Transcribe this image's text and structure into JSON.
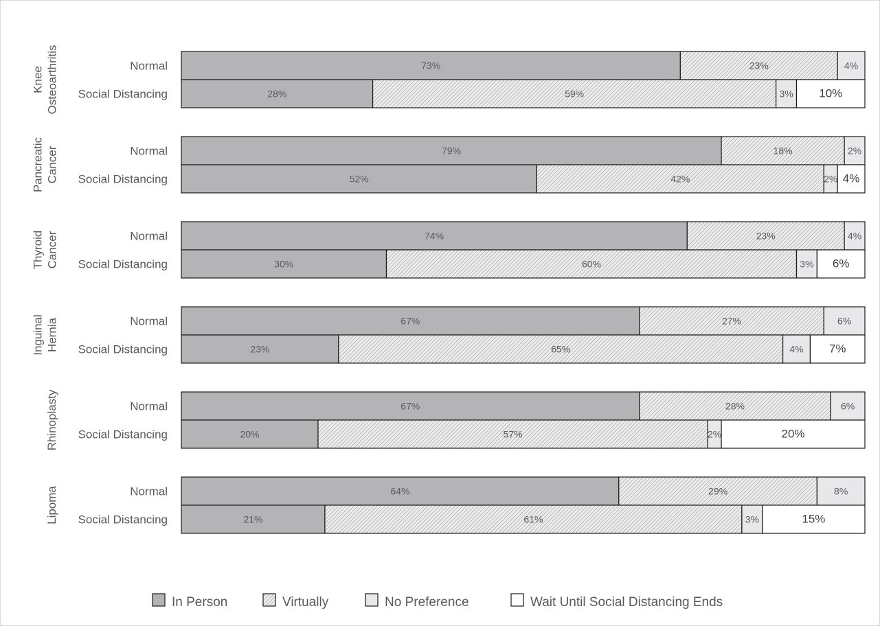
{
  "chart_data": {
    "type": "bar",
    "orientation": "horizontal",
    "stacked": "100%",
    "title": "",
    "xlabel": "",
    "ylabel": "",
    "xlim": [
      0,
      100
    ],
    "grid": false,
    "legend_position": "bottom",
    "series": [
      {
        "key": "in_person",
        "name": "In Person",
        "fill": "#b4b4b6",
        "pattern": "solid"
      },
      {
        "key": "virtually",
        "name": "Virtually",
        "fill": "#e6e6e6",
        "pattern": "diagonal-hatch"
      },
      {
        "key": "no_preference",
        "name": "No Preference",
        "fill": "#e8e8ea",
        "pattern": "solid"
      },
      {
        "key": "wait",
        "name": "Wait Until Social Distancing Ends",
        "fill": "#ffffff",
        "pattern": "solid"
      }
    ],
    "groups": [
      {
        "label_lines": [
          "Knee",
          "Osteoarthritis"
        ],
        "rows": [
          {
            "label": "Normal",
            "values": [
              73,
              23,
              4,
              0
            ],
            "labels": [
              "73%",
              "23%",
              "4%",
              ""
            ]
          },
          {
            "label": "Social Distancing",
            "values": [
              28,
              59,
              3,
              10
            ],
            "labels": [
              "28%",
              "59%",
              "3%",
              "10%"
            ]
          }
        ]
      },
      {
        "label_lines": [
          "Pancreatic",
          "Cancer"
        ],
        "rows": [
          {
            "label": "Normal",
            "values": [
              79,
              18,
              2,
              0
            ],
            "labels": [
              "79%",
              "18%",
              "2%",
              ""
            ]
          },
          {
            "label": "Social Distancing",
            "values": [
              52,
              42,
              2,
              4
            ],
            "labels": [
              "52%",
              "42%",
              "2%",
              "4%"
            ]
          }
        ]
      },
      {
        "label_lines": [
          "Thyroid",
          "Cancer"
        ],
        "rows": [
          {
            "label": "Normal",
            "values": [
              74,
              23,
              4,
              0
            ],
            "labels": [
              "74%",
              "23%",
              "4%",
              ""
            ]
          },
          {
            "label": "Social Distancing",
            "values": [
              30,
              60,
              3,
              6
            ],
            "labels": [
              "30%",
              "60%",
              "3%",
              "6%"
            ]
          }
        ]
      },
      {
        "label_lines": [
          "Inguinal",
          "Hernia"
        ],
        "rows": [
          {
            "label": "Normal",
            "values": [
              67,
              27,
              6,
              0
            ],
            "labels": [
              "67%",
              "27%",
              "6%",
              ""
            ]
          },
          {
            "label": "Social Distancing",
            "values": [
              23,
              65,
              4,
              7
            ],
            "labels": [
              "23%",
              "65%",
              "4%",
              "7%"
            ]
          }
        ]
      },
      {
        "label_lines": [
          "Rhinoplasty"
        ],
        "rows": [
          {
            "label": "Normal",
            "values": [
              67,
              28,
              6,
              0
            ],
            "labels": [
              "67%",
              "28%",
              "6%",
              ""
            ]
          },
          {
            "label": "Social Distancing",
            "values": [
              20,
              57,
              2,
              20
            ],
            "labels": [
              "20%",
              "57%",
              "2%",
              "20%"
            ]
          }
        ]
      },
      {
        "label_lines": [
          "Lipoma"
        ],
        "rows": [
          {
            "label": "Normal",
            "values": [
              64,
              29,
              8,
              0
            ],
            "labels": [
              "64%",
              "29%",
              "8%",
              ""
            ]
          },
          {
            "label": "Social Distancing",
            "values": [
              21,
              61,
              3,
              15
            ],
            "labels": [
              "21%",
              "61%",
              "3%",
              "15%"
            ]
          }
        ]
      }
    ]
  }
}
